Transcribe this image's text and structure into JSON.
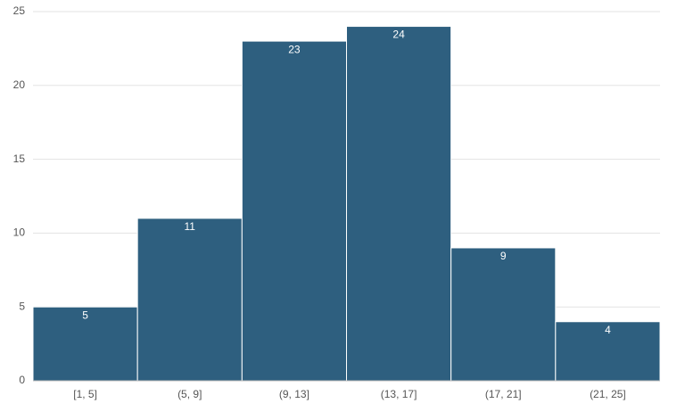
{
  "chart_data": {
    "type": "bar",
    "categories": [
      "[1, 5]",
      "(5, 9]",
      "(9, 13]",
      "(13, 17]",
      "(17, 21]",
      "(21, 25]"
    ],
    "values": [
      5,
      11,
      23,
      24,
      9,
      4
    ],
    "color": "#2e5f7f",
    "ylim": [
      0,
      25
    ],
    "yticks": [
      0,
      5,
      10,
      15,
      20,
      25
    ],
    "grid": true,
    "value_labels_shown": true
  }
}
